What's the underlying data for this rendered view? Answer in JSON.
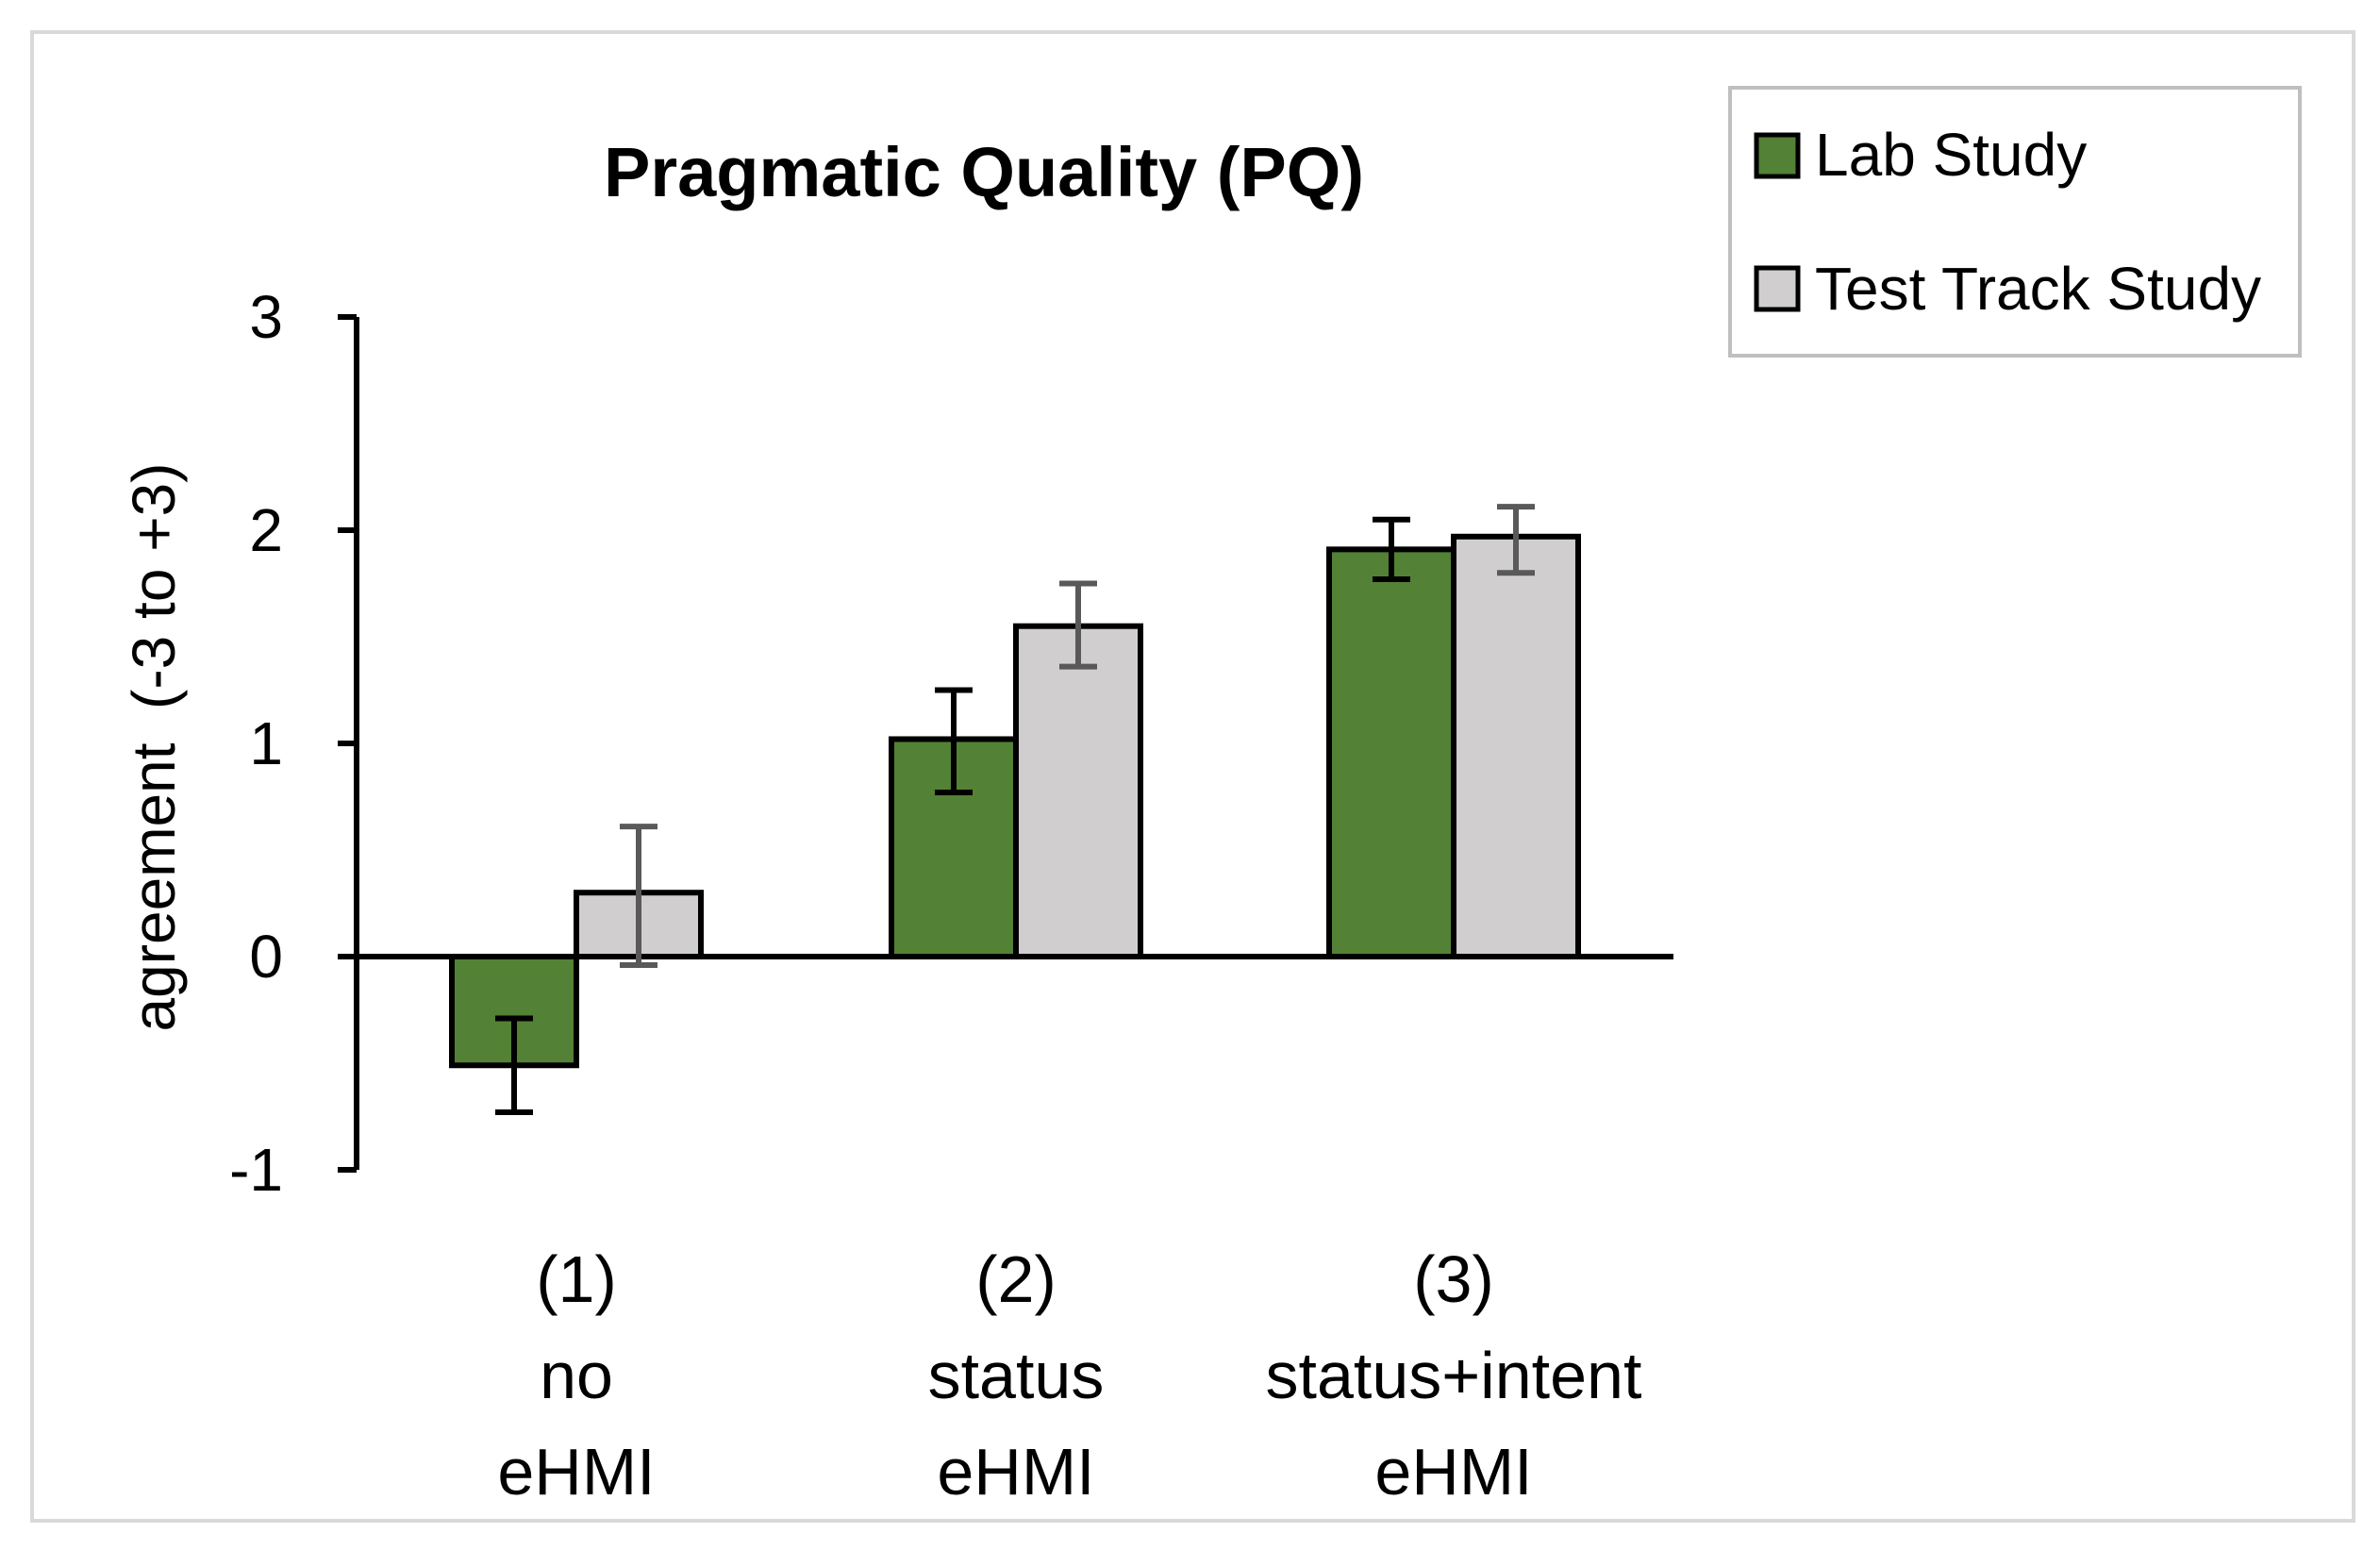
{
  "chart_data": {
    "type": "bar",
    "title": "Pragmatic Quality (PQ)",
    "xlabel": "",
    "ylabel": "agreement  (-3 to +3)",
    "ylim": [
      -1,
      3
    ],
    "yticks": [
      "-1",
      "0",
      "1",
      "2",
      "3"
    ],
    "grid": false,
    "legend_position": "top-right",
    "categories": [
      [
        "(1)",
        "no",
        "eHMI"
      ],
      [
        "(2)",
        "status",
        "eHMI"
      ],
      [
        "(3)",
        "status+intent",
        "eHMI"
      ]
    ],
    "series": [
      {
        "name": "Lab Study",
        "color": "#538135",
        "error_color": "#000000",
        "values": [
          -0.51,
          1.02,
          1.91
        ],
        "error_low": [
          -0.73,
          0.77,
          1.77
        ],
        "error_high": [
          -0.29,
          1.25,
          2.05
        ]
      },
      {
        "name": "Test Track Study",
        "color": "#D0CECE",
        "error_color": "#595959",
        "values": [
          0.3,
          1.55,
          1.97
        ],
        "error_low": [
          -0.04,
          1.36,
          1.8
        ],
        "error_high": [
          0.61,
          1.75,
          2.11
        ]
      }
    ]
  }
}
